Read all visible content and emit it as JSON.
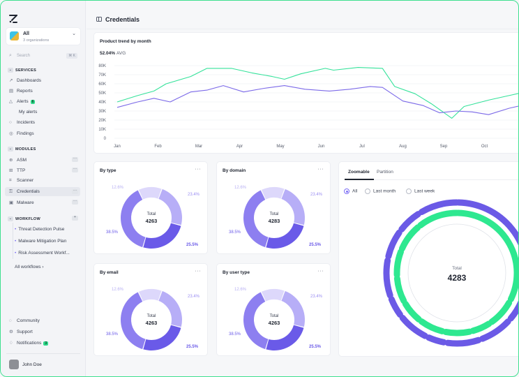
{
  "sidebar": {
    "org": {
      "name": "All",
      "subtitle": "3 organizations"
    },
    "search": {
      "placeholder": "Search",
      "shortcut": "⌘ K"
    },
    "sections": {
      "services": "SERVICES",
      "modules": "MODULES",
      "workflow": "WORKFLOW"
    },
    "services_items": [
      {
        "label": "Dashboards",
        "icon": "chart-icon"
      },
      {
        "label": "Reports",
        "icon": "document-icon"
      },
      {
        "label": "Alerts",
        "icon": "warning-icon",
        "badge": "6"
      },
      {
        "label": "My alerts",
        "icon": ""
      },
      {
        "label": "Incidents",
        "icon": "circle-icon"
      },
      {
        "label": "Findings",
        "icon": "target-icon"
      }
    ],
    "modules_items": [
      {
        "label": "ASM",
        "icon": "globe-icon"
      },
      {
        "label": "TTP",
        "icon": "grid-icon"
      },
      {
        "label": "Scanner",
        "icon": "scan-icon"
      },
      {
        "label": "Credentials",
        "icon": "key-icon"
      },
      {
        "label": "Malware",
        "icon": "bug-icon"
      }
    ],
    "workflow_items": [
      {
        "label": "Threat Detection Pulse"
      },
      {
        "label": "Malware Mitigation Plan"
      },
      {
        "label": "Risk Assessment Workf..."
      }
    ],
    "all_workflows": "All workflows",
    "bottom": [
      {
        "label": "Community",
        "icon": "community-icon"
      },
      {
        "label": "Support",
        "icon": "gear-icon"
      },
      {
        "label": "Notifications",
        "icon": "bell-icon",
        "badge": "3"
      }
    ],
    "user": "John Doe"
  },
  "header": {
    "title": "Credentials"
  },
  "trend_card": {
    "title": "Product trend by month",
    "avg_value": "52.04%",
    "avg_label": "AVG"
  },
  "chart_data": [
    {
      "type": "line",
      "title": "Product trend by month",
      "x": [
        "Jan",
        "Feb",
        "Mar",
        "Apr",
        "May",
        "Jun",
        "Jul",
        "Aug",
        "Sep",
        "Oct"
      ],
      "y_ticks": [
        "0",
        "10K",
        "20K",
        "30K",
        "40K",
        "50K",
        "60K",
        "70K",
        "80K"
      ],
      "ylim": [
        0,
        80000
      ],
      "grid": true,
      "series": [
        {
          "color": "#34e29a",
          "points": [
            [
              0,
              40000
            ],
            [
              0.5,
              47000
            ],
            [
              0.9,
              52000
            ],
            [
              1.2,
              60000
            ],
            [
              1.8,
              68000
            ],
            [
              2.2,
              77000
            ],
            [
              2.8,
              77000
            ],
            [
              3.3,
              72000
            ],
            [
              3.8,
              68000
            ],
            [
              4.1,
              65000
            ],
            [
              4.5,
              71000
            ],
            [
              5.1,
              77000
            ],
            [
              5.3,
              75000
            ],
            [
              5.9,
              78000
            ],
            [
              6.5,
              77000
            ],
            [
              6.8,
              57000
            ],
            [
              7.3,
              49000
            ],
            [
              7.7,
              38000
            ],
            [
              8.2,
              22000
            ],
            [
              8.5,
              35000
            ],
            [
              9.1,
              42000
            ],
            [
              9.6,
              47000
            ],
            [
              10,
              51000
            ]
          ]
        },
        {
          "color": "#7b69e8",
          "points": [
            [
              0,
              34000
            ],
            [
              0.5,
              40000
            ],
            [
              0.9,
              44000
            ],
            [
              1.3,
              40000
            ],
            [
              1.8,
              51000
            ],
            [
              2.2,
              53000
            ],
            [
              2.6,
              58000
            ],
            [
              3.1,
              51000
            ],
            [
              3.6,
              55000
            ],
            [
              4.1,
              58000
            ],
            [
              4.6,
              54000
            ],
            [
              5.2,
              52000
            ],
            [
              5.7,
              54000
            ],
            [
              6.2,
              57000
            ],
            [
              6.5,
              56000
            ],
            [
              7.0,
              41000
            ],
            [
              7.5,
              36000
            ],
            [
              7.9,
              28000
            ],
            [
              8.3,
              30000
            ],
            [
              8.7,
              29000
            ],
            [
              9.1,
              26000
            ],
            [
              9.6,
              33000
            ],
            [
              10,
              37000
            ]
          ]
        }
      ]
    },
    {
      "type": "pie",
      "title": "By type",
      "center_label": "Total",
      "center_value": "4263",
      "slices": [
        {
          "label": "25.5%",
          "value": 25.5,
          "color": "#6a5ae8"
        },
        {
          "label": "38.5%",
          "value": 38.5,
          "color": "#8d7ff0"
        },
        {
          "label": "12.6%",
          "value": 12.6,
          "color": "#ddd8fb"
        },
        {
          "label": "23.4%",
          "value": 23.4,
          "color": "#b7aef7"
        }
      ]
    },
    {
      "type": "pie",
      "title": "By domain",
      "center_label": "Total",
      "center_value": "4283",
      "slices": [
        {
          "label": "25.5%",
          "value": 25.5,
          "color": "#6a5ae8"
        },
        {
          "label": "38.5%",
          "value": 38.5,
          "color": "#8d7ff0"
        },
        {
          "label": "12.6%",
          "value": 12.6,
          "color": "#ddd8fb"
        },
        {
          "label": "23.4%",
          "value": 23.4,
          "color": "#b7aef7"
        }
      ]
    },
    {
      "type": "pie",
      "title": "By email",
      "center_label": "Total",
      "center_value": "4263",
      "slices": [
        {
          "label": "25.5%",
          "value": 25.5,
          "color": "#6a5ae8"
        },
        {
          "label": "38.5%",
          "value": 38.5,
          "color": "#8d7ff0"
        },
        {
          "label": "12.6%",
          "value": 12.6,
          "color": "#ddd8fb"
        },
        {
          "label": "23.4%",
          "value": 23.4,
          "color": "#b7aef7"
        }
      ]
    },
    {
      "type": "pie",
      "title": "By user type",
      "center_label": "Total",
      "center_value": "4263",
      "slices": [
        {
          "label": "25.5%",
          "value": 25.5,
          "color": "#6a5ae8"
        },
        {
          "label": "38.5%",
          "value": 38.5,
          "color": "#8d7ff0"
        },
        {
          "label": "12.6%",
          "value": 12.6,
          "color": "#ddd8fb"
        },
        {
          "label": "23.4%",
          "value": 23.4,
          "color": "#b7aef7"
        }
      ]
    }
  ],
  "zoomable": {
    "tabs": [
      "Zoomable",
      "Partition"
    ],
    "filters": [
      "All",
      "Last month",
      "Last week"
    ],
    "selected_filter": "All",
    "center_label": "Total",
    "center_value": "4283",
    "colors": {
      "outer": "#6b5ae6",
      "inner": "#2ee890"
    }
  },
  "colors": {
    "accent": "#7c6ef5",
    "success": "#2fd98a"
  }
}
